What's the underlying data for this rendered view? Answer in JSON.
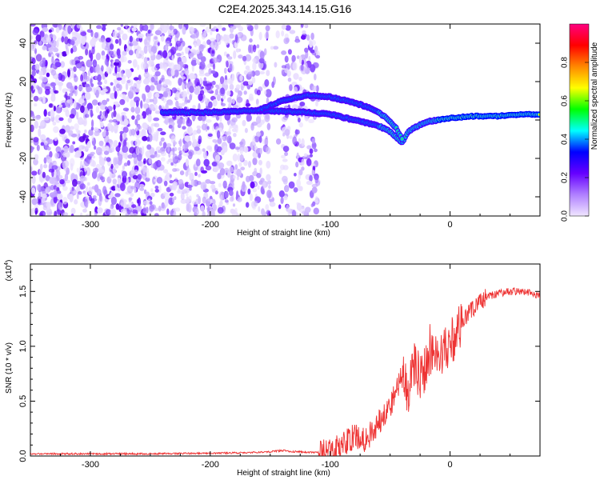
{
  "chart_data": [
    {
      "type": "heatmap",
      "title": "C2E4.2025.343.14.15.G16",
      "xlabel": "Height of straight line (km)",
      "ylabel": "Frequency (Hz)",
      "xlim": [
        -350,
        75
      ],
      "ylim": [
        -50,
        50
      ],
      "xticks": [
        -300,
        -200,
        -100,
        0
      ],
      "xtick_labels": [
        "-300",
        "-200",
        "-100",
        "0"
      ],
      "yticks": [
        -40,
        -20,
        0,
        20,
        40
      ],
      "ytick_labels": [
        "-40",
        "-20",
        "0",
        "20",
        "40"
      ],
      "colorbar": {
        "label": "Normalized spectral amplitude",
        "range": [
          0,
          1
        ],
        "ticks": [
          0.0,
          0.2,
          0.4,
          0.6,
          0.8
        ],
        "tick_labels": [
          "0.0",
          "0.2",
          "0.4",
          "0.6",
          "0.8"
        ],
        "colors": [
          "#f0e6ff",
          "#b080ff",
          "#6600ff",
          "#0000ff",
          "#00ffff",
          "#00ff00",
          "#ffff00",
          "#ff8800",
          "#ff0000",
          "#ff0080"
        ]
      },
      "noise_region_x": [
        -350,
        -110
      ],
      "signal_traces": [
        {
          "name": "carrier",
          "x": [
            -240,
            -200,
            -160,
            -120,
            -100,
            -80,
            -60,
            -50,
            -40,
            -35,
            -30,
            -20,
            0,
            20,
            40,
            60,
            75
          ],
          "y": [
            4,
            4,
            5,
            4,
            3,
            0,
            -3,
            -6,
            -12,
            -6,
            -4,
            -1,
            1,
            2,
            2,
            3,
            3
          ]
        },
        {
          "name": "upper-branch",
          "x": [
            -160,
            -140,
            -120,
            -100,
            -80,
            -65,
            -55,
            -45,
            -40
          ],
          "y": [
            5,
            10,
            13,
            12,
            9,
            6,
            2,
            -4,
            -10
          ]
        }
      ]
    },
    {
      "type": "line",
      "xlabel": "Height of straight line (km)",
      "ylabel": "SNR (10 * v/v)",
      "scale_label": "(x10",
      "scale_exponent": "4",
      "scale_suffix": ")",
      "xlim": [
        -350,
        75
      ],
      "ylim": [
        0,
        1.75
      ],
      "xticks": [
        -300,
        -200,
        -100,
        0
      ],
      "xtick_labels": [
        "-300",
        "-200",
        "-100",
        "0"
      ],
      "yticks": [
        0.0,
        0.5,
        1.0,
        1.5
      ],
      "ytick_labels": [
        "0.0",
        "0.5",
        "1.0",
        "1.5"
      ],
      "line_color": "#ee3333",
      "series": [
        {
          "name": "SNR",
          "x": [
            -350,
            -300,
            -250,
            -200,
            -170,
            -150,
            -140,
            -130,
            -110,
            -100,
            -90,
            -80,
            -70,
            -60,
            -55,
            -50,
            -45,
            -40,
            -35,
            -30,
            -25,
            -20,
            -15,
            -10,
            -5,
            0,
            5,
            10,
            15,
            20,
            25,
            30,
            40,
            50,
            60,
            70,
            75
          ],
          "y": [
            0.02,
            0.02,
            0.02,
            0.025,
            0.03,
            0.04,
            0.05,
            0.04,
            0.03,
            0.04,
            0.1,
            0.18,
            0.15,
            0.3,
            0.4,
            0.45,
            0.6,
            0.75,
            0.55,
            0.85,
            0.7,
            0.8,
            0.95,
            1.0,
            0.95,
            1.05,
            1.1,
            1.2,
            1.3,
            1.35,
            1.4,
            1.45,
            1.48,
            1.5,
            1.5,
            1.48,
            1.45
          ]
        }
      ]
    }
  ]
}
